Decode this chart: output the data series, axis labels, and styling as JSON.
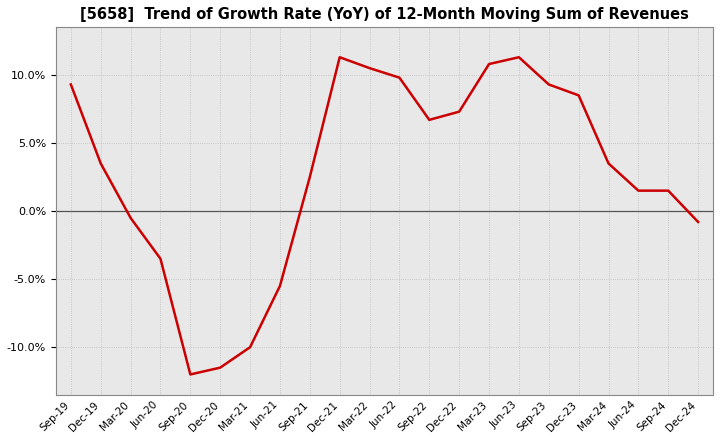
{
  "title": "[5658]  Trend of Growth Rate (YoY) of 12-Month Moving Sum of Revenues",
  "line_color": "#cc0000",
  "line_width": 1.8,
  "background_color": "#ffffff",
  "plot_bg_color": "#e8e8e8",
  "grid_color": "#bbbbbb",
  "ylim": [
    -13.5,
    13.5
  ],
  "yticks": [
    -10,
    -5,
    0,
    5,
    10
  ],
  "x_labels": [
    "Sep-19",
    "Dec-19",
    "Mar-20",
    "Jun-20",
    "Sep-20",
    "Dec-20",
    "Mar-21",
    "Jun-21",
    "Sep-21",
    "Dec-21",
    "Mar-22",
    "Jun-22",
    "Sep-22",
    "Dec-22",
    "Mar-23",
    "Jun-23",
    "Sep-23",
    "Dec-23",
    "Mar-24",
    "Jun-24",
    "Sep-24",
    "Dec-24"
  ],
  "y_values": [
    9.3,
    3.5,
    -0.5,
    -3.5,
    -12.0,
    -11.5,
    -10.0,
    -5.5,
    2.5,
    11.3,
    10.5,
    9.8,
    6.7,
    7.3,
    10.8,
    11.3,
    9.3,
    8.5,
    3.5,
    1.5,
    1.5,
    -0.8
  ]
}
